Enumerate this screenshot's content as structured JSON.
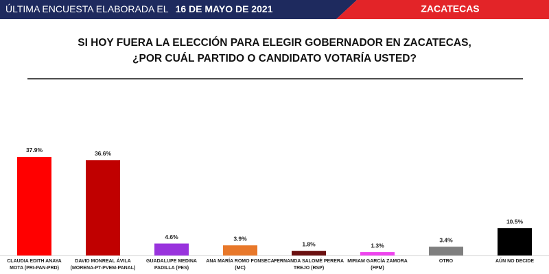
{
  "header": {
    "label": "ÚLTIMA ENCUESTA ELABORADA EL",
    "date": "16 DE MAYO DE 2021",
    "region": "ZACATECAS"
  },
  "chart_data": {
    "type": "bar",
    "title": [
      "SI HOY FUERA LA ELECCIÓN PARA ELEGIR GOBERNADOR EN ZACATECAS,",
      "¿POR CUÁL PARTIDO O CANDIDATO VOTARÍA USTED?"
    ],
    "categories": [
      [
        "CLAUDIA EDITH ANAYA",
        "MOTA (PRI-PAN-PRD)"
      ],
      [
        "DAVID MONREAL ÁVILA",
        "(MORENA-PT-PVEM-PANAL)"
      ],
      [
        "GUADALUPE MEDINA",
        "PADILLA  (PES)"
      ],
      [
        "ANA MARÍA ROMO FONSECA",
        "(MC)"
      ],
      [
        "FERNANDA SALOMÉ PERERA",
        "TREJO (RSP)"
      ],
      [
        "MIRIAM GARCÍA ZAMORA",
        "(FPM)"
      ],
      [
        "OTRO"
      ],
      [
        "AÚN NO DECIDE"
      ]
    ],
    "values": [
      37.9,
      36.6,
      4.6,
      3.9,
      1.8,
      1.3,
      3.4,
      10.5
    ],
    "value_labels": [
      "37.9%",
      "36.6%",
      "4.6%",
      "3.9%",
      "1.8%",
      "1.3%",
      "3.4%",
      "10.5%"
    ],
    "colors": [
      "#ff0000",
      "#c00000",
      "#9933dd",
      "#e8782a",
      "#6a1010",
      "#ee44ee",
      "#7f7f7f",
      "#000000"
    ],
    "ylim": [
      0,
      40
    ]
  }
}
